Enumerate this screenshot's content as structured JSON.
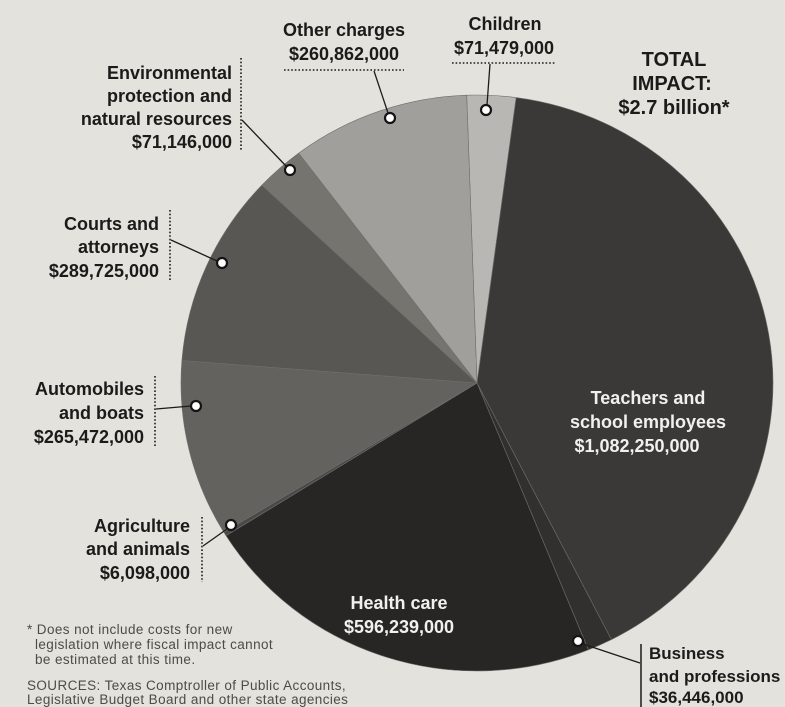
{
  "colors": {
    "paper": "#e4e2dd",
    "ink": "#1c1b1a",
    "inside_label": "#f1f0ec"
  },
  "chart_data": {
    "type": "pie",
    "total": {
      "lines": [
        "TOTAL",
        "IMPACT:"
      ],
      "value": "$2.7 billion*"
    },
    "slices": [
      {
        "label": [
          "Children"
        ],
        "value_text": "$71,479,000",
        "value": 71479000,
        "color": "#b8b7b3"
      },
      {
        "label": [
          "Teachers and",
          "school employees"
        ],
        "value_text": "$1,082,250,000",
        "value": 1082250000,
        "color": "#3a3937"
      },
      {
        "label": [
          "Business",
          "and professions"
        ],
        "value_text": "$36,446,000",
        "value": 36446000,
        "color": "#31302e"
      },
      {
        "label": [
          "Health care"
        ],
        "value_text": "$596,239,000",
        "value": 596239000,
        "color": "#272625"
      },
      {
        "label": [
          "Agriculture",
          "and animals"
        ],
        "value_text": "$6,098,000",
        "value": 6098000,
        "color": "#4a4947"
      },
      {
        "label": [
          "Automobiles",
          "and boats"
        ],
        "value_text": "$265,472,000",
        "value": 265472000,
        "color": "#63625f"
      },
      {
        "label": [
          "Courts and",
          "attorneys"
        ],
        "value_text": "$289,725,000",
        "value": 289725000,
        "color": "#585754"
      },
      {
        "label": [
          "Environmental",
          "protection and",
          "natural resources"
        ],
        "value_text": "$71,146,000",
        "value": 71146000,
        "color": "#75746f"
      },
      {
        "label": [
          "Other charges"
        ],
        "value_text": "$260,862,000",
        "value": 260862000,
        "color": "#a19f9b"
      }
    ]
  },
  "footnote": [
    "* Does not include costs for new",
    "legislation where fiscal impact cannot",
    "be estimated at this time."
  ],
  "sources": [
    "SOURCES: Texas Comptroller of Public Accounts,",
    "Legislative Budget Board and other state agencies"
  ]
}
